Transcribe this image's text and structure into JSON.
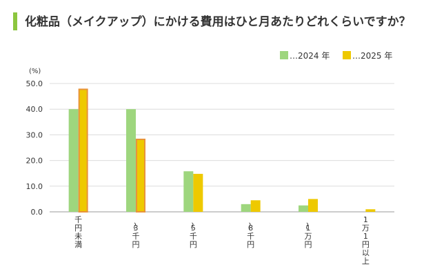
{
  "header": {
    "title": "化粧品（メイクアップ）にかける費用はひと月あたりどれくらいですか？",
    "accent_color": "#8cc63f"
  },
  "chart_data": {
    "type": "bar",
    "unit_label": "(%)",
    "categories": [
      "千円未満",
      "〜3千円",
      "〜5千円",
      "〜8千円",
      "〜1万円",
      "1万1円以上"
    ],
    "series": [
      {
        "name": "…2024 年",
        "color": "#9ed67e",
        "values": [
          40.0,
          40.0,
          15.8,
          3.0,
          2.5,
          0.0
        ]
      },
      {
        "name": "…2025 年",
        "color": "#eec900",
        "values": [
          48.0,
          28.5,
          14.8,
          4.5,
          5.0,
          1.0
        ]
      }
    ],
    "highlighted_bars": [
      {
        "series": 1,
        "category": 0
      },
      {
        "series": 1,
        "category": 1
      }
    ],
    "highlight_color": "#e8933a",
    "ylim": [
      0,
      50
    ],
    "yticks": [
      "0.0",
      "10.0",
      "20.0",
      "30.0",
      "40.0",
      "50.0"
    ],
    "grid": true,
    "legend_position": "top-right"
  }
}
